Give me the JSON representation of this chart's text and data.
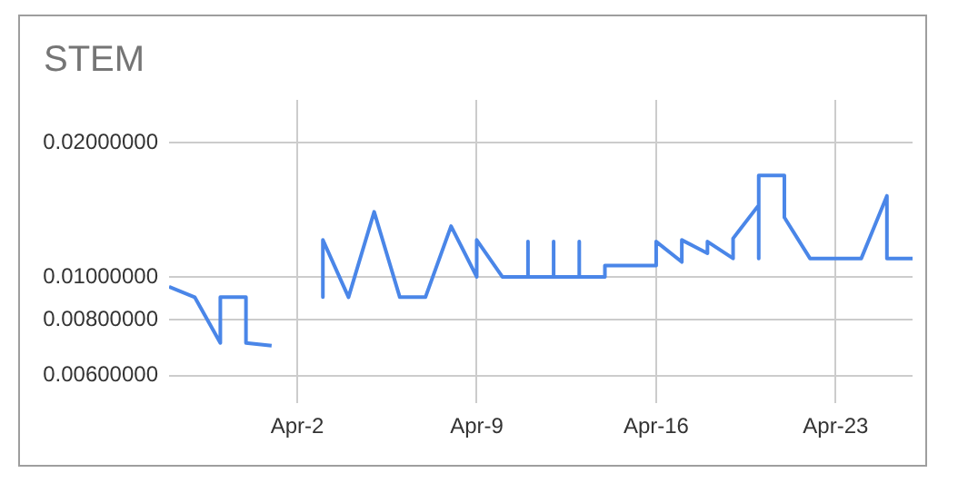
{
  "chart_data": {
    "type": "line",
    "title": "STEM",
    "x": [
      "--03-28",
      "--03-29",
      "--03-30",
      "--03-30",
      "--03-31",
      "--03-31",
      "--04-01",
      "--04-02",
      "--04-03",
      "--04-03",
      "--04-03",
      "--04-04",
      "--04-05",
      "--04-06",
      "--04-07",
      "--04-08",
      "--04-09",
      "--04-09",
      "--04-10",
      "--04-11",
      "--04-11",
      "--04-11",
      "--04-12",
      "--04-12",
      "--04-12",
      "--04-13",
      "--04-13",
      "--04-13",
      "--04-14",
      "--04-14",
      "--04-15",
      "--04-16",
      "--04-16",
      "--04-17",
      "--04-17",
      "--04-18",
      "--04-18",
      "--04-19",
      "--04-19",
      "--04-20",
      "--04-20",
      "--04-20",
      "--04-21",
      "--04-21",
      "--04-22",
      "--04-24",
      "--04-25",
      "--04-25",
      "--04-26"
    ],
    "series": [
      {
        "color": "#4a86e8",
        "values": [
          0.0095,
          0.009,
          0.0071,
          0.009,
          0.009,
          0.0071,
          0.007,
          null,
          0.0121,
          0.009,
          0.0121,
          0.009,
          0.014,
          0.009,
          0.009,
          0.013,
          0.01,
          0.0121,
          0.01,
          0.01,
          0.012,
          0.01,
          0.01,
          0.012,
          0.01,
          0.01,
          0.012,
          0.01,
          0.01,
          0.0106,
          0.0106,
          0.0106,
          0.012,
          0.0108,
          0.0121,
          0.0113,
          0.012,
          0.011,
          0.0122,
          0.0145,
          0.011,
          0.0169,
          0.0169,
          0.0136,
          0.011,
          0.011,
          0.0152,
          0.011,
          0.011
        ]
      }
    ],
    "xlim": [
      "--03-28",
      "--04-26"
    ],
    "xticks": [
      {
        "value": "--04-02",
        "label": "Apr-2"
      },
      {
        "value": "--04-09",
        "label": "Apr-9"
      },
      {
        "value": "--04-16",
        "label": "Apr-16"
      },
      {
        "value": "--04-23",
        "label": "Apr-23"
      }
    ],
    "ylim": [
      0.0052,
      0.025
    ],
    "log": "y",
    "yticks": [
      {
        "value": 0.006,
        "label": "0.00600000"
      },
      {
        "value": 0.008,
        "label": "0.00800000"
      },
      {
        "value": 0.01,
        "label": "0.01000000"
      },
      {
        "value": 0.02,
        "label": "0.02000000"
      }
    ],
    "grid": true,
    "legend": false,
    "marker": "none",
    "line_style": "solid"
  }
}
